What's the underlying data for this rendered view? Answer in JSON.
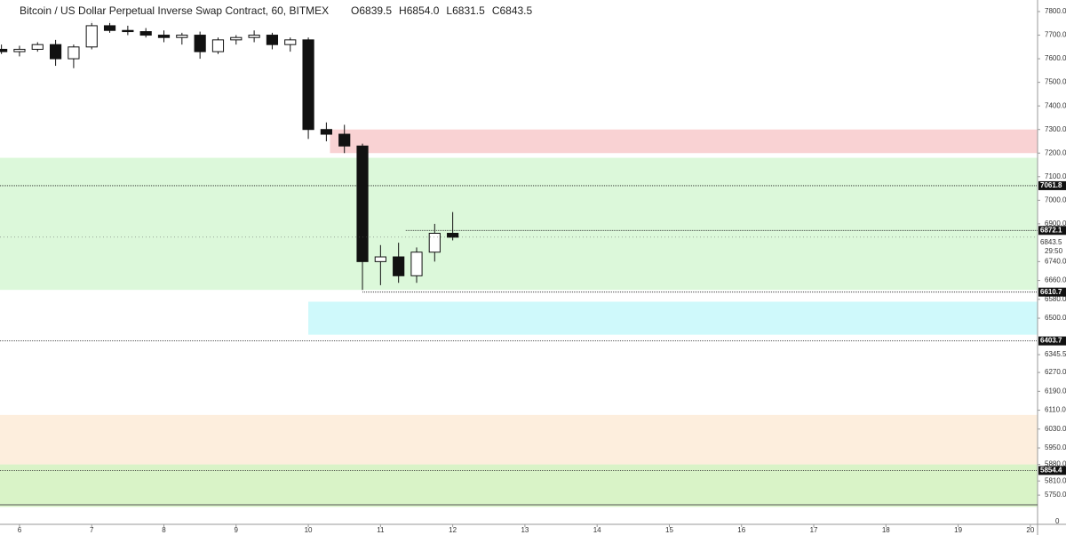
{
  "chart_data": {
    "type": "candlestick",
    "title": "Bitcoin / US Dollar Perpetual Inverse Swap Contract, 60, BITMEX",
    "ohlc": [
      {
        "key": "O",
        "text": "6839.5"
      },
      {
        "key": "H",
        "text": "6854.0"
      },
      {
        "key": "L",
        "text": "6831.5"
      },
      {
        "key": "C",
        "text": "6843.5"
      }
    ],
    "x": [
      5.75,
      6.0,
      6.25,
      6.5,
      6.75,
      7.0,
      7.25,
      7.5,
      7.75,
      8.0,
      8.25,
      8.5,
      8.75,
      9.0,
      9.25,
      9.5,
      9.75,
      10.0,
      10.25,
      10.5,
      10.75,
      11.0,
      11.25,
      11.5,
      11.75,
      12.0
    ],
    "open": [
      7640,
      7630,
      7640,
      7660,
      7600,
      7650,
      7740,
      7720,
      7715,
      7700,
      7690,
      7700,
      7630,
      7680,
      7690,
      7700,
      7660,
      7680,
      7300,
      7280,
      7230,
      6740,
      6760,
      6680,
      6780,
      6860
    ],
    "high": [
      7660,
      7655,
      7670,
      7680,
      7660,
      7760,
      7760,
      7740,
      7730,
      7720,
      7710,
      7715,
      7690,
      7700,
      7720,
      7710,
      7690,
      7690,
      7330,
      7320,
      7240,
      6810,
      6820,
      6800,
      6900,
      6950
    ],
    "low": [
      7620,
      7610,
      7630,
      7570,
      7560,
      7640,
      7710,
      7700,
      7690,
      7670,
      7660,
      7600,
      7620,
      7660,
      7670,
      7640,
      7630,
      7260,
      7250,
      7200,
      6620,
      6640,
      6650,
      6650,
      6740,
      6830
    ],
    "close": [
      7630,
      7640,
      7660,
      7600,
      7650,
      7740,
      7720,
      7715,
      7700,
      7690,
      7700,
      7630,
      7680,
      7690,
      7700,
      7660,
      7680,
      7300,
      7280,
      7230,
      6740,
      6760,
      6680,
      6780,
      6860,
      6843.5
    ],
    "xlim": [
      5.73,
      20.1
    ],
    "xticks": [
      6,
      7,
      8,
      9,
      10,
      11,
      12,
      13,
      14,
      15,
      16,
      17,
      18,
      19,
      20
    ],
    "ylim": [
      5709,
      7849
    ],
    "yticks": [
      {
        "value": 7800,
        "label": "7800.0"
      },
      {
        "value": 7700,
        "label": "7700.0"
      },
      {
        "value": 7600,
        "label": "7600.0"
      },
      {
        "value": 7500,
        "label": "7500.0"
      },
      {
        "value": 7400,
        "label": "7400.0"
      },
      {
        "value": 7300,
        "label": "7300.0"
      },
      {
        "value": 7200,
        "label": "7200.0"
      },
      {
        "value": 7100,
        "label": "7100.0"
      },
      {
        "value": 7000,
        "label": "7000.0"
      },
      {
        "value": 6900,
        "label": "6900.0"
      },
      {
        "value": 6740,
        "label": "6740.0"
      },
      {
        "value": 6660,
        "label": "6660.0"
      },
      {
        "value": 6580,
        "label": "6580.0"
      },
      {
        "value": 6500,
        "label": "6500.0"
      },
      6345.5,
      {
        "value": 6270,
        "label": "6270.0"
      },
      {
        "value": 6190,
        "label": "6190.0"
      },
      {
        "value": 6110,
        "label": "6110.0"
      },
      {
        "value": 6030,
        "label": "6030.0"
      },
      {
        "value": 5950,
        "label": "5950.0"
      },
      {
        "value": 5880,
        "label": "5880.0"
      },
      {
        "value": 5810,
        "label": "5810.0"
      },
      {
        "value": 5750,
        "label": "5750.0"
      }
    ],
    "last_price": 6843.5,
    "countdown": "29:50",
    "volume_yticks": [
      0
    ],
    "levels": [
      {
        "price": 7061.8,
        "start": 5.73
      },
      {
        "price": 6872.1,
        "start": 11.35
      },
      {
        "price": 6610.7,
        "start": 10.75
      },
      {
        "price": 6403.7,
        "start": 5.73
      },
      {
        "price": 5854.4,
        "start": 5.73
      }
    ],
    "zones": [
      {
        "top": 7300,
        "bottom": 7200,
        "start": 10.3,
        "color": "#f9d2d3"
      },
      {
        "top": 7180,
        "bottom": 6620,
        "start": 5.73,
        "color": "#dcf8da"
      },
      {
        "top": 6570,
        "bottom": 6430,
        "start": 10.0,
        "color": "#cff9fb"
      },
      {
        "top": 6090,
        "bottom": 5880,
        "start": 5.73,
        "color": "#fdeedd"
      },
      {
        "top": 5880,
        "bottom": 5700,
        "start": 5.73,
        "color": "#d9f3c7"
      }
    ]
  }
}
